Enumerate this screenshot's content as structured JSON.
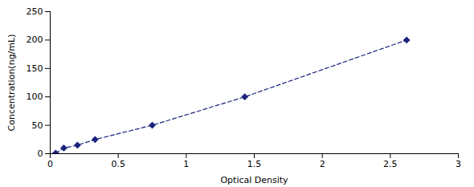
{
  "chart_data": {
    "type": "line",
    "x": [
      0.04,
      0.1,
      0.2,
      0.33,
      0.75,
      1.43,
      2.62
    ],
    "values": [
      1.0,
      10.0,
      15.0,
      25.0,
      50.0,
      100.0,
      200.0
    ],
    "color": "#1a237e",
    "marker": "diamond",
    "line_style": "dashed",
    "xlabel": "Optical Density",
    "ylabel": "Concentration(ng/mL)",
    "xlim": [
      0,
      3
    ],
    "ylim": [
      0,
      250
    ],
    "xticks": [
      0,
      0.5,
      1,
      1.5,
      2,
      2.5,
      3
    ],
    "yticks": [
      0,
      50,
      100,
      150,
      200,
      250
    ],
    "grid": false
  }
}
